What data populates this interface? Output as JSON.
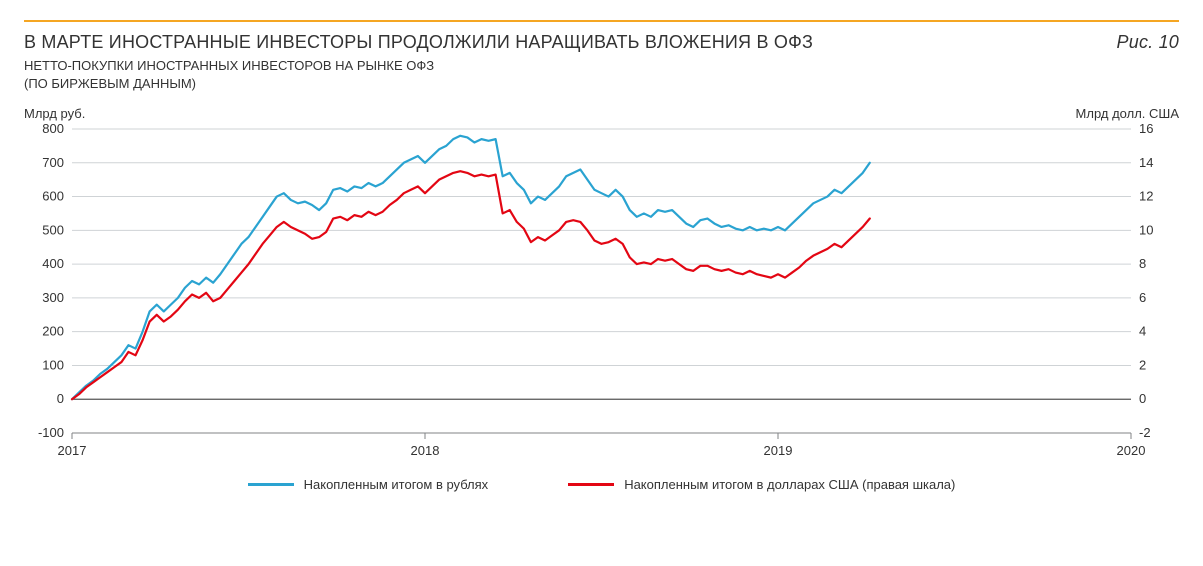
{
  "accent_rule_color": "#f5a623",
  "title": "В МАРТЕ ИНОСТРАННЫЕ ИНВЕСТОРЫ ПРОДОЛЖИЛИ НАРАЩИВАТЬ ВЛОЖЕНИЯ В ОФЗ",
  "figure_label": "Рис. 10",
  "subtitle_line1": "НЕТТО-ПОКУПКИ ИНОСТРАННЫХ ИНВЕСТОРОВ НА РЫНКЕ ОФЗ",
  "subtitle_line2": "(ПО БИРЖЕВЫМ ДАННЫМ)",
  "y_left_title": "Млрд руб.",
  "y_right_title": "Млрд долл. США",
  "chart": {
    "type": "line",
    "x_domain": [
      2017,
      2020
    ],
    "y_left": {
      "min": -100,
      "max": 800,
      "step": 100
    },
    "y_right": {
      "min": -2,
      "max": 16,
      "step": 2
    },
    "x_ticks": [
      2017,
      2018,
      2019,
      2020
    ],
    "grid_color": "#cfd3d6",
    "axis_color": "#808386",
    "zero_line_color": "#555",
    "background": "#ffffff",
    "line_width": 2.2,
    "series": [
      {
        "name": "rub",
        "axis": "left",
        "color": "#2aa3d1",
        "label": "Накопленным итогом в рублях",
        "points": [
          [
            2017.0,
            0
          ],
          [
            2017.02,
            20
          ],
          [
            2017.04,
            40
          ],
          [
            2017.06,
            55
          ],
          [
            2017.08,
            75
          ],
          [
            2017.1,
            90
          ],
          [
            2017.12,
            110
          ],
          [
            2017.14,
            130
          ],
          [
            2017.16,
            160
          ],
          [
            2017.18,
            150
          ],
          [
            2017.2,
            200
          ],
          [
            2017.22,
            260
          ],
          [
            2017.24,
            280
          ],
          [
            2017.26,
            260
          ],
          [
            2017.28,
            280
          ],
          [
            2017.3,
            300
          ],
          [
            2017.32,
            330
          ],
          [
            2017.34,
            350
          ],
          [
            2017.36,
            340
          ],
          [
            2017.38,
            360
          ],
          [
            2017.4,
            345
          ],
          [
            2017.42,
            370
          ],
          [
            2017.44,
            400
          ],
          [
            2017.46,
            430
          ],
          [
            2017.48,
            460
          ],
          [
            2017.5,
            480
          ],
          [
            2017.52,
            510
          ],
          [
            2017.54,
            540
          ],
          [
            2017.56,
            570
          ],
          [
            2017.58,
            600
          ],
          [
            2017.6,
            610
          ],
          [
            2017.62,
            590
          ],
          [
            2017.64,
            580
          ],
          [
            2017.66,
            585
          ],
          [
            2017.68,
            575
          ],
          [
            2017.7,
            560
          ],
          [
            2017.72,
            580
          ],
          [
            2017.74,
            620
          ],
          [
            2017.76,
            625
          ],
          [
            2017.78,
            615
          ],
          [
            2017.8,
            630
          ],
          [
            2017.82,
            625
          ],
          [
            2017.84,
            640
          ],
          [
            2017.86,
            630
          ],
          [
            2017.88,
            640
          ],
          [
            2017.9,
            660
          ],
          [
            2017.92,
            680
          ],
          [
            2017.94,
            700
          ],
          [
            2017.96,
            710
          ],
          [
            2017.98,
            720
          ],
          [
            2018.0,
            700
          ],
          [
            2018.02,
            720
          ],
          [
            2018.04,
            740
          ],
          [
            2018.06,
            750
          ],
          [
            2018.08,
            770
          ],
          [
            2018.1,
            780
          ],
          [
            2018.12,
            775
          ],
          [
            2018.14,
            760
          ],
          [
            2018.16,
            770
          ],
          [
            2018.18,
            765
          ],
          [
            2018.2,
            770
          ],
          [
            2018.22,
            660
          ],
          [
            2018.24,
            670
          ],
          [
            2018.26,
            640
          ],
          [
            2018.28,
            620
          ],
          [
            2018.3,
            580
          ],
          [
            2018.32,
            600
          ],
          [
            2018.34,
            590
          ],
          [
            2018.36,
            610
          ],
          [
            2018.38,
            630
          ],
          [
            2018.4,
            660
          ],
          [
            2018.42,
            670
          ],
          [
            2018.44,
            680
          ],
          [
            2018.46,
            650
          ],
          [
            2018.48,
            620
          ],
          [
            2018.5,
            610
          ],
          [
            2018.52,
            600
          ],
          [
            2018.54,
            620
          ],
          [
            2018.56,
            600
          ],
          [
            2018.58,
            560
          ],
          [
            2018.6,
            540
          ],
          [
            2018.62,
            550
          ],
          [
            2018.64,
            540
          ],
          [
            2018.66,
            560
          ],
          [
            2018.68,
            555
          ],
          [
            2018.7,
            560
          ],
          [
            2018.72,
            540
          ],
          [
            2018.74,
            520
          ],
          [
            2018.76,
            510
          ],
          [
            2018.78,
            530
          ],
          [
            2018.8,
            535
          ],
          [
            2018.82,
            520
          ],
          [
            2018.84,
            510
          ],
          [
            2018.86,
            515
          ],
          [
            2018.88,
            505
          ],
          [
            2018.9,
            500
          ],
          [
            2018.92,
            510
          ],
          [
            2018.94,
            500
          ],
          [
            2018.96,
            505
          ],
          [
            2018.98,
            500
          ],
          [
            2019.0,
            510
          ],
          [
            2019.02,
            500
          ],
          [
            2019.04,
            520
          ],
          [
            2019.06,
            540
          ],
          [
            2019.08,
            560
          ],
          [
            2019.1,
            580
          ],
          [
            2019.12,
            590
          ],
          [
            2019.14,
            600
          ],
          [
            2019.16,
            620
          ],
          [
            2019.18,
            610
          ],
          [
            2019.2,
            630
          ],
          [
            2019.22,
            650
          ],
          [
            2019.24,
            670
          ],
          [
            2019.26,
            700
          ]
        ]
      },
      {
        "name": "usd",
        "axis": "right",
        "color": "#e30613",
        "label": "Накопленным итогом в долларах США (правая шкала)",
        "points": [
          [
            2017.0,
            0.0
          ],
          [
            2017.02,
            0.3
          ],
          [
            2017.04,
            0.7
          ],
          [
            2017.06,
            1.0
          ],
          [
            2017.08,
            1.3
          ],
          [
            2017.1,
            1.6
          ],
          [
            2017.12,
            1.9
          ],
          [
            2017.14,
            2.2
          ],
          [
            2017.16,
            2.8
          ],
          [
            2017.18,
            2.6
          ],
          [
            2017.2,
            3.5
          ],
          [
            2017.22,
            4.6
          ],
          [
            2017.24,
            5.0
          ],
          [
            2017.26,
            4.6
          ],
          [
            2017.28,
            4.9
          ],
          [
            2017.3,
            5.3
          ],
          [
            2017.32,
            5.8
          ],
          [
            2017.34,
            6.2
          ],
          [
            2017.36,
            6.0
          ],
          [
            2017.38,
            6.3
          ],
          [
            2017.4,
            5.8
          ],
          [
            2017.42,
            6.0
          ],
          [
            2017.44,
            6.5
          ],
          [
            2017.46,
            7.0
          ],
          [
            2017.48,
            7.5
          ],
          [
            2017.5,
            8.0
          ],
          [
            2017.52,
            8.6
          ],
          [
            2017.54,
            9.2
          ],
          [
            2017.56,
            9.7
          ],
          [
            2017.58,
            10.2
          ],
          [
            2017.6,
            10.5
          ],
          [
            2017.62,
            10.2
          ],
          [
            2017.64,
            10.0
          ],
          [
            2017.66,
            9.8
          ],
          [
            2017.68,
            9.5
          ],
          [
            2017.7,
            9.6
          ],
          [
            2017.72,
            9.9
          ],
          [
            2017.74,
            10.7
          ],
          [
            2017.76,
            10.8
          ],
          [
            2017.78,
            10.6
          ],
          [
            2017.8,
            10.9
          ],
          [
            2017.82,
            10.8
          ],
          [
            2017.84,
            11.1
          ],
          [
            2017.86,
            10.9
          ],
          [
            2017.88,
            11.1
          ],
          [
            2017.9,
            11.5
          ],
          [
            2017.92,
            11.8
          ],
          [
            2017.94,
            12.2
          ],
          [
            2017.96,
            12.4
          ],
          [
            2017.98,
            12.6
          ],
          [
            2018.0,
            12.2
          ],
          [
            2018.02,
            12.6
          ],
          [
            2018.04,
            13.0
          ],
          [
            2018.06,
            13.2
          ],
          [
            2018.08,
            13.4
          ],
          [
            2018.1,
            13.5
          ],
          [
            2018.12,
            13.4
          ],
          [
            2018.14,
            13.2
          ],
          [
            2018.16,
            13.3
          ],
          [
            2018.18,
            13.2
          ],
          [
            2018.2,
            13.3
          ],
          [
            2018.22,
            11.0
          ],
          [
            2018.24,
            11.2
          ],
          [
            2018.26,
            10.5
          ],
          [
            2018.28,
            10.1
          ],
          [
            2018.3,
            9.3
          ],
          [
            2018.32,
            9.6
          ],
          [
            2018.34,
            9.4
          ],
          [
            2018.36,
            9.7
          ],
          [
            2018.38,
            10.0
          ],
          [
            2018.4,
            10.5
          ],
          [
            2018.42,
            10.6
          ],
          [
            2018.44,
            10.5
          ],
          [
            2018.46,
            10.0
          ],
          [
            2018.48,
            9.4
          ],
          [
            2018.5,
            9.2
          ],
          [
            2018.52,
            9.3
          ],
          [
            2018.54,
            9.5
          ],
          [
            2018.56,
            9.2
          ],
          [
            2018.58,
            8.4
          ],
          [
            2018.6,
            8.0
          ],
          [
            2018.62,
            8.1
          ],
          [
            2018.64,
            8.0
          ],
          [
            2018.66,
            8.3
          ],
          [
            2018.68,
            8.2
          ],
          [
            2018.7,
            8.3
          ],
          [
            2018.72,
            8.0
          ],
          [
            2018.74,
            7.7
          ],
          [
            2018.76,
            7.6
          ],
          [
            2018.78,
            7.9
          ],
          [
            2018.8,
            7.9
          ],
          [
            2018.82,
            7.7
          ],
          [
            2018.84,
            7.6
          ],
          [
            2018.86,
            7.7
          ],
          [
            2018.88,
            7.5
          ],
          [
            2018.9,
            7.4
          ],
          [
            2018.92,
            7.6
          ],
          [
            2018.94,
            7.4
          ],
          [
            2018.96,
            7.3
          ],
          [
            2018.98,
            7.2
          ],
          [
            2019.0,
            7.4
          ],
          [
            2019.02,
            7.2
          ],
          [
            2019.04,
            7.5
          ],
          [
            2019.06,
            7.8
          ],
          [
            2019.08,
            8.2
          ],
          [
            2019.1,
            8.5
          ],
          [
            2019.12,
            8.7
          ],
          [
            2019.14,
            8.9
          ],
          [
            2019.16,
            9.2
          ],
          [
            2019.18,
            9.0
          ],
          [
            2019.2,
            9.4
          ],
          [
            2019.22,
            9.8
          ],
          [
            2019.24,
            10.2
          ],
          [
            2019.26,
            10.7
          ]
        ]
      }
    ]
  },
  "legend": {
    "rub": "Накопленным итогом в рублях",
    "usd": "Накопленным итогом в долларах США (правая шкала)"
  }
}
